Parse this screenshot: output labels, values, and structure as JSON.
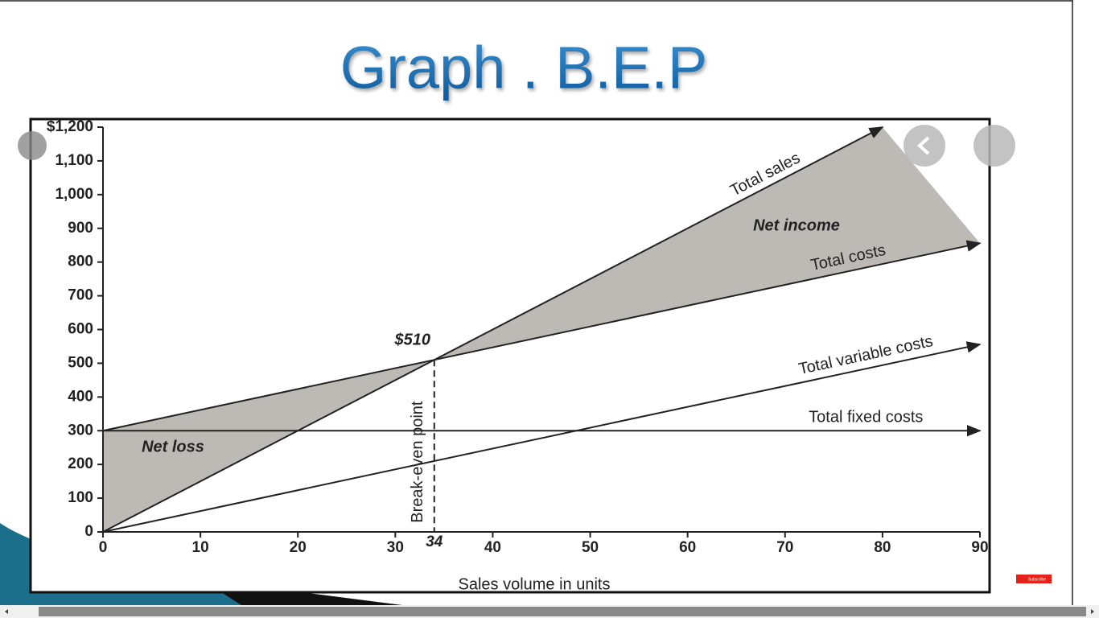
{
  "chart_data": {
    "type": "line",
    "title": "Graph . B.E.P",
    "x_label": "Sales volume in units",
    "xlim": [
      0,
      90
    ],
    "xticks": [
      0,
      10,
      20,
      30,
      40,
      50,
      60,
      70,
      80,
      90
    ],
    "ylim": [
      0,
      1200
    ],
    "yticks": [
      0,
      100,
      200,
      300,
      400,
      500,
      600,
      700,
      800,
      900,
      {
        "value": 1000,
        "label": "1,000"
      },
      {
        "value": 1100,
        "label": "1,100"
      },
      {
        "value": 1200,
        "label": "$1,200"
      }
    ],
    "series": [
      {
        "name": "Total sales",
        "color": "#222222",
        "x": [
          0,
          80
        ],
        "values": [
          0,
          1200
        ]
      },
      {
        "name": "Total costs",
        "color": "#222222",
        "x": [
          0,
          90
        ],
        "values": [
          300,
          856
        ]
      },
      {
        "name": "Total variable costs",
        "color": "#222222",
        "x": [
          0,
          90
        ],
        "values": [
          0,
          556
        ]
      },
      {
        "name": "Total fixed costs",
        "color": "#222222",
        "x": [
          0,
          90
        ],
        "values": [
          300,
          300
        ]
      }
    ],
    "break_even": {
      "x": 34,
      "y": 510,
      "y_label": "$510",
      "line_label": "Break-even point"
    },
    "areas": [
      {
        "name": "Net loss",
        "color": "#bdbab6"
      },
      {
        "name": "Net income",
        "color": "#bdbab6"
      }
    ]
  },
  "subscribe": "Subscribe"
}
